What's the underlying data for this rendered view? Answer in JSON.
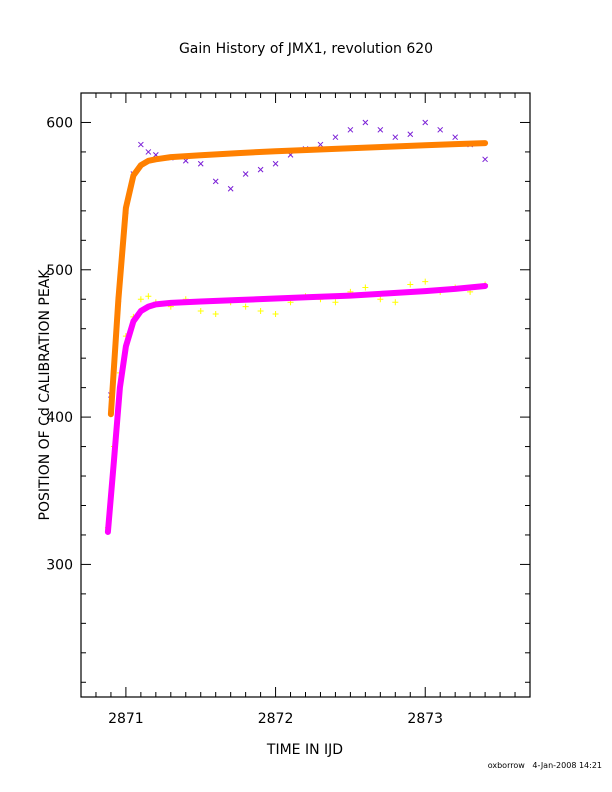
{
  "chart_data": {
    "type": "scatter",
    "title": "Gain History of JMX1, revolution 620",
    "xlabel": "TIME IN IJD",
    "ylabel": "POSITION OF Cd CALIBRATION PEAK",
    "xlim": [
      2870.7,
      2873.7
    ],
    "ylim": [
      210,
      620
    ],
    "x_ticks": [
      2871,
      2872,
      2873
    ],
    "y_ticks": [
      300,
      400,
      500,
      600
    ],
    "grid": false,
    "legend": "none",
    "footer": "oxborrow   4-Jan-2008 14:21",
    "series": [
      {
        "role": "upper-data",
        "marker": "x",
        "color": "#7a1fd6",
        "x": [
          2870.9,
          2870.95,
          2871.0,
          2871.05,
          2871.1,
          2871.15,
          2871.2,
          2871.3,
          2871.4,
          2871.5,
          2871.6,
          2871.7,
          2871.8,
          2871.9,
          2872.0,
          2872.1,
          2872.2,
          2872.3,
          2872.4,
          2872.5,
          2872.6,
          2872.7,
          2872.8,
          2872.9,
          2873.0,
          2873.1,
          2873.2,
          2873.3,
          2873.4
        ],
        "y": [
          415,
          480,
          540,
          565,
          585,
          580,
          578,
          576,
          574,
          572,
          560,
          555,
          565,
          568,
          572,
          578,
          582,
          585,
          590,
          595,
          600,
          595,
          590,
          592,
          600,
          595,
          590,
          585,
          575
        ]
      },
      {
        "role": "upper-fit",
        "marker": "line",
        "color": "#ff8000",
        "x": [
          2870.9,
          2870.95,
          2871.0,
          2871.05,
          2871.1,
          2871.15,
          2871.2,
          2871.3,
          2871.5,
          2871.75,
          2872.0,
          2872.25,
          2872.5,
          2872.75,
          2873.0,
          2873.2,
          2873.4
        ],
        "y": [
          402,
          480,
          542,
          564,
          571,
          574,
          575,
          576.5,
          577.8,
          579.2,
          580.5,
          581.5,
          582.5,
          583.5,
          584.5,
          585.3,
          586
        ]
      },
      {
        "role": "lower-data",
        "marker": "+",
        "color": "#ffff00",
        "x": [
          2870.88,
          2870.92,
          2870.96,
          2871.0,
          2871.05,
          2871.1,
          2871.15,
          2871.2,
          2871.3,
          2871.4,
          2871.5,
          2871.6,
          2871.7,
          2871.8,
          2871.9,
          2872.0,
          2872.1,
          2872.2,
          2872.3,
          2872.4,
          2872.5,
          2872.6,
          2872.7,
          2872.8,
          2872.9,
          2873.0,
          2873.1,
          2873.2,
          2873.3,
          2873.4
        ],
        "y": [
          325,
          380,
          430,
          455,
          468,
          480,
          482,
          478,
          475,
          480,
          472,
          470,
          478,
          475,
          472,
          470,
          478,
          482,
          480,
          478,
          485,
          488,
          480,
          478,
          490,
          492,
          485,
          488,
          485,
          490
        ]
      },
      {
        "role": "lower-fit",
        "marker": "line",
        "color": "#ff00ff",
        "x": [
          2870.88,
          2870.92,
          2870.96,
          2871.0,
          2871.05,
          2871.1,
          2871.15,
          2871.2,
          2871.3,
          2871.5,
          2871.75,
          2872.0,
          2872.25,
          2872.5,
          2872.75,
          2873.0,
          2873.2,
          2873.4
        ],
        "y": [
          322,
          370,
          420,
          448,
          465,
          472,
          475,
          476.5,
          477.5,
          478.5,
          479.5,
          480.5,
          481.5,
          482.5,
          484,
          485.5,
          487,
          489
        ]
      }
    ]
  }
}
